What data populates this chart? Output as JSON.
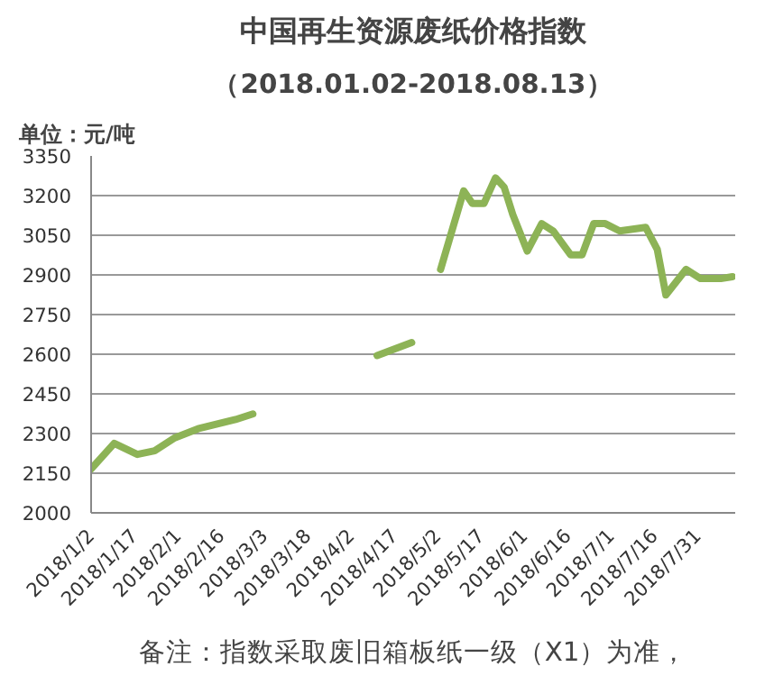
{
  "chart_data": {
    "type": "line",
    "title": "中国再生资源废纸价格指数",
    "subtitle": "（2018.01.02-2018.08.13）",
    "ylabel": "单位：元/吨",
    "annotations": [
      "备注：指数采取废旧箱板纸一级（X1）为准，"
    ],
    "x": [
      "2018-01-02",
      "2018-01-10",
      "2018-01-18",
      "2018-01-24",
      "2018-01-31",
      "2018-02-08",
      "2018-02-21",
      "2018-02-27",
      "2018-03-20",
      "2018-04-11",
      "2018-04-23",
      "2018-04-28",
      "2018-05-03",
      "2018-05-11",
      "2018-05-14",
      "2018-05-18",
      "2018-05-22",
      "2018-05-25",
      "2018-05-28",
      "2018-06-02",
      "2018-06-07",
      "2018-06-11",
      "2018-06-17",
      "2018-06-21",
      "2018-06-25",
      "2018-06-29",
      "2018-07-04",
      "2018-07-13",
      "2018-07-17",
      "2018-07-20",
      "2018-07-27",
      "2018-08-01",
      "2018-08-08",
      "2018-08-12"
    ],
    "series": [
      {
        "color": "#8db356",
        "values": [
          2166,
          2263,
          2221,
          2235,
          2284,
          2318,
          2353,
          2374,
          null,
          2595,
          2644,
          null,
          2921,
          3218,
          3170,
          3170,
          3267,
          3232,
          3128,
          2990,
          3094,
          3066,
          2976,
          2976,
          3094,
          3094,
          3066,
          3080,
          2997,
          2824,
          2921,
          2886,
          2886,
          2893
        ]
      }
    ],
    "xlim": [
      "2018-01-02",
      "2018-08-13"
    ],
    "xticks": [
      {
        "value": "2018-01-02",
        "label": "2018/1/2"
      },
      {
        "value": "2018-01-17",
        "label": "2018/1/17"
      },
      {
        "value": "2018-02-01",
        "label": "2018/2/1"
      },
      {
        "value": "2018-02-16",
        "label": "2018/2/16"
      },
      {
        "value": "2018-03-03",
        "label": "2018/3/3"
      },
      {
        "value": "2018-03-18",
        "label": "2018/3/18"
      },
      {
        "value": "2018-04-02",
        "label": "2018/4/2"
      },
      {
        "value": "2018-04-17",
        "label": "2018/4/17"
      },
      {
        "value": "2018-05-02",
        "label": "2018/5/2"
      },
      {
        "value": "2018-05-17",
        "label": "2018/5/17"
      },
      {
        "value": "2018-06-01",
        "label": "2018/6/1"
      },
      {
        "value": "2018-06-16",
        "label": "2018/6/16"
      },
      {
        "value": "2018-07-01",
        "label": "2018/7/1"
      },
      {
        "value": "2018-07-16",
        "label": "2018/7/16"
      },
      {
        "value": "2018-07-31",
        "label": "2018/7/31"
      }
    ],
    "ylim": [
      2000,
      3350
    ],
    "yticks": [
      2000,
      2150,
      2300,
      2450,
      2600,
      2750,
      2900,
      3050,
      3200,
      3350
    ],
    "grid": "y",
    "marker": "none",
    "line_style": "solid"
  }
}
